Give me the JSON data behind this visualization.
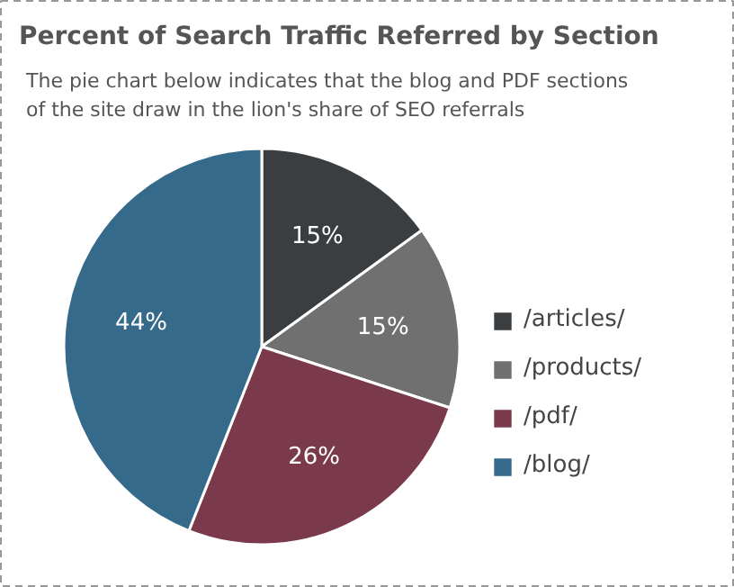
{
  "chart_data": {
    "type": "pie",
    "title": "Percent of Search Traffic Referred by Section",
    "subtitle": "The pie chart below indicates that the blog and PDF sections of the site draw in the lion's share of SEO referrals",
    "categories": [
      "/articles/",
      "/products/",
      "/pdf/",
      "/blog/"
    ],
    "values": [
      15,
      15,
      26,
      44
    ],
    "colors": [
      "#3b3e41",
      "#707070",
      "#7b3a4c",
      "#366a8b"
    ],
    "value_labels": [
      "15%",
      "15%",
      "26%",
      "44%"
    ],
    "legend": "right"
  }
}
